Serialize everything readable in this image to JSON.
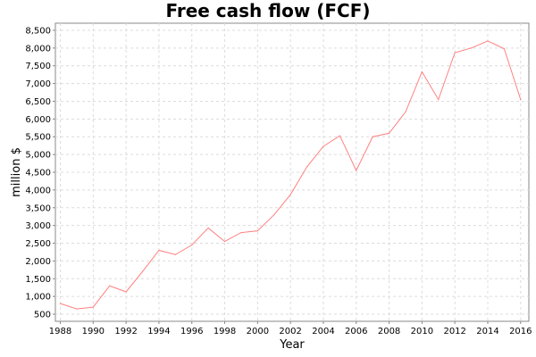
{
  "chart_data": {
    "type": "line",
    "title": "Free cash flow (FCF)",
    "xlabel": "Year",
    "ylabel": "million $",
    "x": [
      1988,
      1989,
      1990,
      1991,
      1992,
      1993,
      1994,
      1995,
      1996,
      1997,
      1998,
      1999,
      2000,
      2001,
      2002,
      2003,
      2004,
      2005,
      2006,
      2007,
      2008,
      2009,
      2010,
      2011,
      2012,
      2013,
      2014,
      2015,
      2016
    ],
    "series": [
      {
        "name": "",
        "color": "#ff8080",
        "values": [
          800,
          650,
          700,
          1300,
          1130,
          1700,
          2300,
          2180,
          2450,
          2930,
          2550,
          2800,
          2850,
          3300,
          3870,
          4650,
          5230,
          5530,
          4550,
          5500,
          5600,
          6200,
          7330,
          6550,
          7870,
          8000,
          8200,
          7980,
          6550
        ]
      }
    ],
    "xlim": [
      1987.7,
      2016.5
    ],
    "ylim": [
      300,
      8700
    ],
    "x_ticks": [
      "1988",
      "1990",
      "1992",
      "1994",
      "1996",
      "1998",
      "2000",
      "2002",
      "2004",
      "2006",
      "2008",
      "2010",
      "2012",
      "2014",
      "2016"
    ],
    "y_ticks": [
      "500",
      "1,000",
      "1,500",
      "2,000",
      "2,500",
      "3,000",
      "3,500",
      "4,000",
      "4,500",
      "5,000",
      "5,500",
      "6,000",
      "6,500",
      "7,000",
      "7,500",
      "8,000",
      "8,500"
    ],
    "grid": true,
    "legend": "none"
  }
}
